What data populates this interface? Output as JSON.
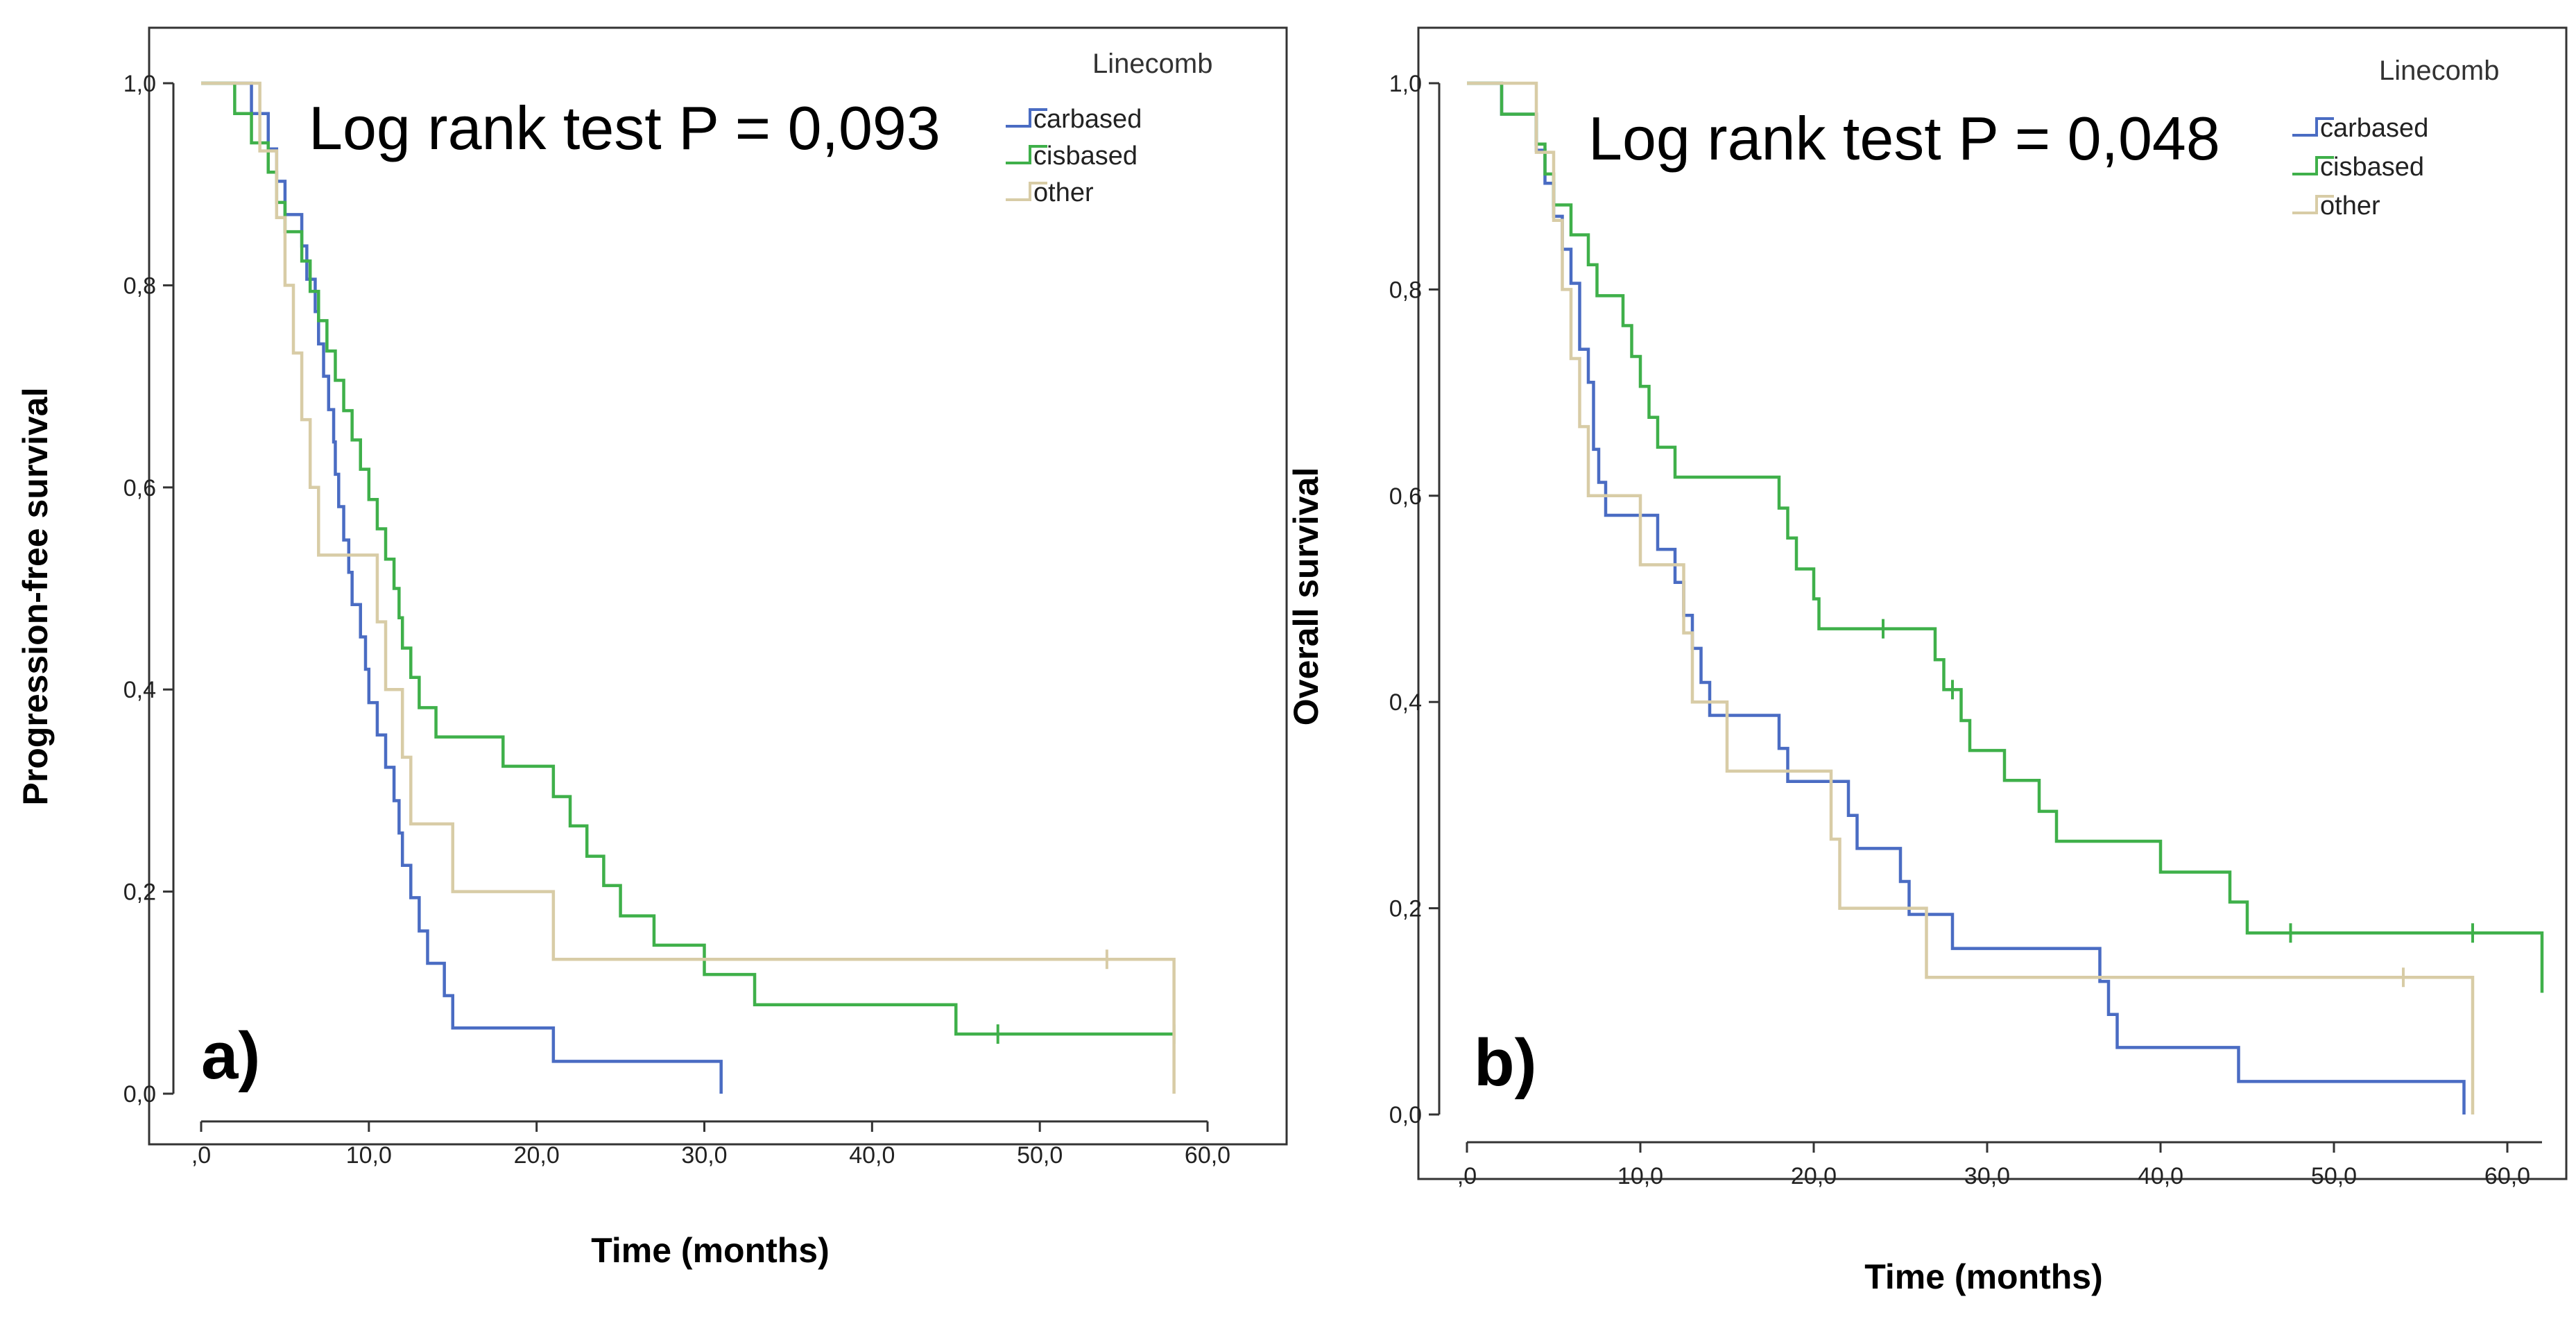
{
  "chart_data": [
    {
      "type": "line",
      "ylabel": "Progression-free survival",
      "xlabel": "Time (months)",
      "xlim": [
        0,
        60
      ],
      "ylim": [
        0,
        1
      ],
      "x_ticks": [
        ",0",
        "10,0",
        "20,0",
        "30,0",
        "40,0",
        "50,0",
        "60,0"
      ],
      "y_ticks": [
        "0,0",
        "0,2",
        "0,4",
        "0,6",
        "0,8",
        "1,0"
      ],
      "legend_title": "Linecomb",
      "legend_position": "top-right",
      "annotation": "Log rank test P = 0,093",
      "panel_label": "a)",
      "grid": false,
      "series": [
        {
          "name": "carbased",
          "color": "#4a6cc3",
          "steps": [
            [
              0,
              1.0
            ],
            [
              3,
              0.97
            ],
            [
              4,
              0.935
            ],
            [
              4.5,
              0.903
            ],
            [
              5,
              0.87
            ],
            [
              6,
              0.839
            ],
            [
              6.3,
              0.806
            ],
            [
              6.8,
              0.774
            ],
            [
              7,
              0.742
            ],
            [
              7.3,
              0.71
            ],
            [
              7.6,
              0.677
            ],
            [
              7.9,
              0.645
            ],
            [
              8,
              0.613
            ],
            [
              8.2,
              0.581
            ],
            [
              8.5,
              0.548
            ],
            [
              8.8,
              0.516
            ],
            [
              9,
              0.484
            ],
            [
              9.5,
              0.452
            ],
            [
              9.8,
              0.42
            ],
            [
              10,
              0.387
            ],
            [
              10.5,
              0.355
            ],
            [
              11,
              0.323
            ],
            [
              11.5,
              0.29
            ],
            [
              11.8,
              0.258
            ],
            [
              12,
              0.226
            ],
            [
              12.5,
              0.194
            ],
            [
              13,
              0.161
            ],
            [
              13.5,
              0.129
            ],
            [
              14.5,
              0.097
            ],
            [
              15,
              0.065
            ],
            [
              21,
              0.032
            ],
            [
              31,
              0.0
            ]
          ],
          "end": 31,
          "censor": []
        },
        {
          "name": "cisbased",
          "color": "#3fb04a",
          "steps": [
            [
              0,
              1.0
            ],
            [
              2,
              0.97
            ],
            [
              3,
              0.941
            ],
            [
              4,
              0.912
            ],
            [
              4.5,
              0.882
            ],
            [
              5,
              0.853
            ],
            [
              6,
              0.824
            ],
            [
              6.5,
              0.794
            ],
            [
              7,
              0.765
            ],
            [
              7.5,
              0.735
            ],
            [
              8,
              0.706
            ],
            [
              8.5,
              0.676
            ],
            [
              9,
              0.647
            ],
            [
              9.5,
              0.618
            ],
            [
              10,
              0.588
            ],
            [
              10.5,
              0.559
            ],
            [
              11,
              0.529
            ],
            [
              11.5,
              0.5
            ],
            [
              11.8,
              0.471
            ],
            [
              12,
              0.441
            ],
            [
              12.5,
              0.412
            ],
            [
              13,
              0.382
            ],
            [
              14,
              0.353
            ],
            [
              18,
              0.324
            ],
            [
              21,
              0.294
            ],
            [
              22,
              0.265
            ],
            [
              23,
              0.235
            ],
            [
              24,
              0.206
            ],
            [
              25,
              0.176
            ],
            [
              27,
              0.147
            ],
            [
              30,
              0.118
            ],
            [
              33,
              0.088
            ],
            [
              45,
              0.059
            ]
          ],
          "end": 58,
          "censor": [
            47.5,
            58
          ]
        },
        {
          "name": "other",
          "color": "#d8cca6",
          "steps": [
            [
              0,
              1.0
            ],
            [
              3.5,
              0.933
            ],
            [
              4.5,
              0.867
            ],
            [
              5,
              0.8
            ],
            [
              5.5,
              0.733
            ],
            [
              6,
              0.667
            ],
            [
              6.5,
              0.6
            ],
            [
              7,
              0.533
            ],
            [
              10.5,
              0.467
            ],
            [
              11,
              0.4
            ],
            [
              12,
              0.333
            ],
            [
              12.5,
              0.267
            ],
            [
              15,
              0.2
            ],
            [
              21,
              0.133
            ],
            [
              58,
              0.0
            ]
          ],
          "end": 58,
          "censor": [
            54
          ]
        }
      ]
    },
    {
      "type": "line",
      "ylabel": "Overall survival",
      "xlabel": "Time (months)",
      "xlim": [
        0,
        62
      ],
      "ylim": [
        0,
        1
      ],
      "x_ticks": [
        ",0",
        "10,0",
        "20,0",
        "30,0",
        "40,0",
        "50,0",
        "60,0"
      ],
      "y_ticks": [
        "0,0",
        "0,2",
        "0,4",
        "0,6",
        "0,8",
        "1,0"
      ],
      "legend_title": "Linecomb",
      "legend_position": "top-right",
      "annotation": "Log rank test P = 0,048",
      "panel_label": "b)",
      "grid": false,
      "series": [
        {
          "name": "carbased",
          "color": "#4a6cc3",
          "steps": [
            [
              0,
              1.0
            ],
            [
              2,
              0.97
            ],
            [
              4,
              0.935
            ],
            [
              4.5,
              0.903
            ],
            [
              5,
              0.871
            ],
            [
              5.5,
              0.839
            ],
            [
              6,
              0.806
            ],
            [
              6.5,
              0.742
            ],
            [
              7,
              0.71
            ],
            [
              7.3,
              0.645
            ],
            [
              7.6,
              0.613
            ],
            [
              8,
              0.581
            ],
            [
              11,
              0.548
            ],
            [
              12,
              0.516
            ],
            [
              12.5,
              0.484
            ],
            [
              13,
              0.452
            ],
            [
              13.5,
              0.419
            ],
            [
              14,
              0.387
            ],
            [
              18,
              0.355
            ],
            [
              18.5,
              0.323
            ],
            [
              22,
              0.29
            ],
            [
              22.5,
              0.258
            ],
            [
              25,
              0.226
            ],
            [
              25.5,
              0.194
            ],
            [
              28,
              0.161
            ],
            [
              36.5,
              0.129
            ],
            [
              37,
              0.097
            ],
            [
              37.5,
              0.065
            ],
            [
              44.5,
              0.032
            ],
            [
              57.5,
              0.0
            ]
          ],
          "end": 57.5,
          "censor": []
        },
        {
          "name": "cisbased",
          "color": "#3fb04a",
          "steps": [
            [
              0,
              1.0
            ],
            [
              2,
              0.97
            ],
            [
              4,
              0.941
            ],
            [
              4.5,
              0.912
            ],
            [
              5,
              0.882
            ],
            [
              6,
              0.853
            ],
            [
              7,
              0.824
            ],
            [
              7.5,
              0.794
            ],
            [
              9,
              0.765
            ],
            [
              9.5,
              0.735
            ],
            [
              10,
              0.706
            ],
            [
              10.5,
              0.676
            ],
            [
              11,
              0.647
            ],
            [
              12,
              0.618
            ],
            [
              18,
              0.588
            ],
            [
              18.5,
              0.559
            ],
            [
              19,
              0.529
            ],
            [
              20,
              0.5
            ],
            [
              20.3,
              0.471
            ],
            [
              27,
              0.441
            ],
            [
              27.5,
              0.412
            ],
            [
              28.5,
              0.382
            ],
            [
              29,
              0.353
            ],
            [
              31,
              0.324
            ],
            [
              33,
              0.294
            ],
            [
              34,
              0.265
            ],
            [
              40,
              0.235
            ],
            [
              44,
              0.206
            ],
            [
              45,
              0.176
            ],
            [
              62,
              0.118
            ]
          ],
          "end": 62,
          "censor": [
            24,
            28,
            47.5,
            58
          ]
        },
        {
          "name": "other",
          "color": "#d8cca6",
          "steps": [
            [
              0,
              1.0
            ],
            [
              4,
              0.933
            ],
            [
              5,
              0.867
            ],
            [
              5.5,
              0.8
            ],
            [
              6,
              0.733
            ],
            [
              6.5,
              0.667
            ],
            [
              7,
              0.6
            ],
            [
              10,
              0.533
            ],
            [
              12.5,
              0.467
            ],
            [
              13,
              0.4
            ],
            [
              15,
              0.333
            ],
            [
              21,
              0.267
            ],
            [
              21.5,
              0.2
            ],
            [
              26.5,
              0.133
            ],
            [
              58,
              0.0
            ]
          ],
          "end": 58,
          "censor": [
            54
          ]
        }
      ]
    }
  ]
}
